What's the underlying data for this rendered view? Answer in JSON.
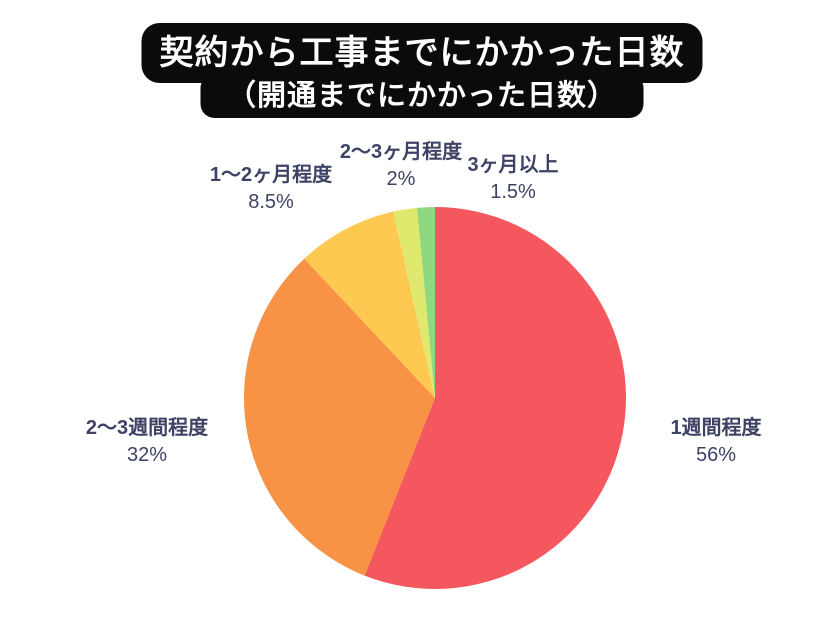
{
  "title": {
    "line1": "契約から工事までにかかった日数",
    "line2": "（開通までにかかった日数）"
  },
  "colors": {
    "background": "#ffffff",
    "title_background": "#0b0b0b",
    "title_text": "#ffffff",
    "label_text": "#3e4366"
  },
  "chart_data": {
    "type": "pie",
    "title": "契約から工事までにかかった日数",
    "subtitle": "（開通までにかかった日数）",
    "start_angle_deg": 0,
    "direction": "clockwise",
    "legend_position": "around-labels",
    "slices": [
      {
        "label": "1週間程度",
        "value_pct": 56,
        "display": "56%",
        "color": "#f4575e"
      },
      {
        "label": "2〜3週間程度",
        "value_pct": 32,
        "display": "32%",
        "color": "#f89245"
      },
      {
        "label": "1〜2ヶ月程度",
        "value_pct": 8.5,
        "display": "8.5%",
        "color": "#fec950"
      },
      {
        "label": "2〜3ヶ月程度",
        "value_pct": 2,
        "display": "2%",
        "color": "#dfe96e"
      },
      {
        "label": "3ヶ月以上",
        "value_pct": 1.5,
        "display": "1.5%",
        "color": "#8ed880"
      }
    ]
  }
}
